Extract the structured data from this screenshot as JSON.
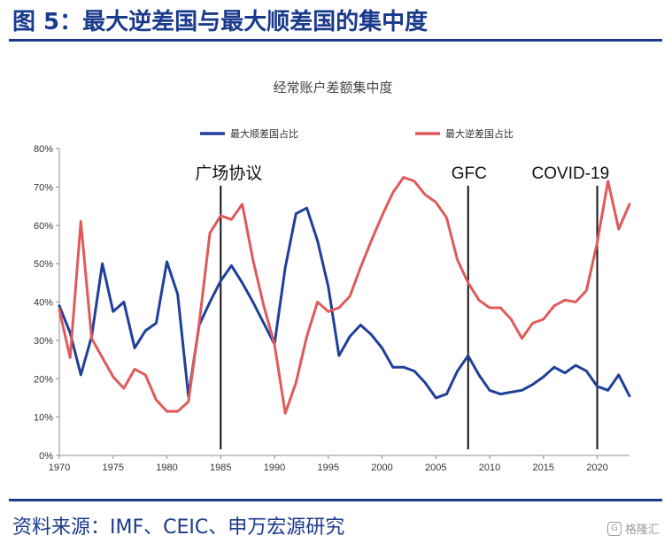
{
  "header": {
    "title": "图 5：最大逆差国与最大顺差国的集中度"
  },
  "footer": {
    "source": "资料来源：IMF、CEIC、申万宏源研究",
    "watermark": "格隆汇"
  },
  "chart_data": {
    "type": "line",
    "title": "经常账户差额集中度",
    "xlim": [
      1970,
      2023
    ],
    "ylim": [
      0,
      0.8
    ],
    "x_ticks": [
      1970,
      1975,
      1980,
      1985,
      1990,
      1995,
      2000,
      2005,
      2010,
      2015,
      2020
    ],
    "y_ticks": [
      "0%",
      "10%",
      "20%",
      "30%",
      "40%",
      "50%",
      "60%",
      "70%",
      "80%"
    ],
    "legend_position": "top",
    "grid": false,
    "annotations": [
      {
        "label": "广场协议",
        "x": 1985
      },
      {
        "label": "GFC",
        "x": 2008
      },
      {
        "label": "COVID-19",
        "x": 2020
      }
    ],
    "x": [
      1970,
      1971,
      1972,
      1973,
      1974,
      1975,
      1976,
      1977,
      1978,
      1979,
      1980,
      1981,
      1982,
      1983,
      1984,
      1985,
      1986,
      1987,
      1988,
      1989,
      1990,
      1991,
      1992,
      1993,
      1994,
      1995,
      1996,
      1997,
      1998,
      1999,
      2000,
      2001,
      2002,
      2003,
      2004,
      2005,
      2006,
      2007,
      2008,
      2009,
      2010,
      2011,
      2012,
      2013,
      2014,
      2015,
      2016,
      2017,
      2018,
      2019,
      2020,
      2021,
      2022,
      2023
    ],
    "series": [
      {
        "name": "最大顺差国占比",
        "color": "#1f3f9a",
        "values": [
          0.39,
          0.32,
          0.21,
          0.31,
          0.5,
          0.375,
          0.4,
          0.28,
          0.325,
          0.345,
          0.505,
          0.42,
          0.155,
          0.34,
          0.4,
          0.455,
          0.495,
          0.45,
          0.4,
          0.345,
          0.29,
          0.49,
          0.63,
          0.645,
          0.56,
          0.44,
          0.26,
          0.31,
          0.34,
          0.315,
          0.28,
          0.23,
          0.23,
          0.22,
          0.19,
          0.15,
          0.16,
          0.22,
          0.26,
          0.21,
          0.17,
          0.16,
          0.165,
          0.17,
          0.185,
          0.205,
          0.23,
          0.215,
          0.235,
          0.22,
          0.18,
          0.17,
          0.21,
          0.155
        ]
      },
      {
        "name": "最大逆差国占比",
        "color": "#e05a5a",
        "values": [
          0.38,
          0.255,
          0.61,
          0.305,
          0.255,
          0.205,
          0.175,
          0.225,
          0.21,
          0.145,
          0.115,
          0.115,
          0.14,
          0.345,
          0.58,
          0.625,
          0.615,
          0.655,
          0.51,
          0.39,
          0.29,
          0.11,
          0.19,
          0.31,
          0.4,
          0.375,
          0.385,
          0.415,
          0.49,
          0.56,
          0.625,
          0.685,
          0.725,
          0.715,
          0.68,
          0.66,
          0.62,
          0.51,
          0.45,
          0.405,
          0.385,
          0.385,
          0.355,
          0.305,
          0.345,
          0.355,
          0.39,
          0.405,
          0.4,
          0.43,
          0.555,
          0.715,
          0.59,
          0.655
        ]
      }
    ]
  }
}
